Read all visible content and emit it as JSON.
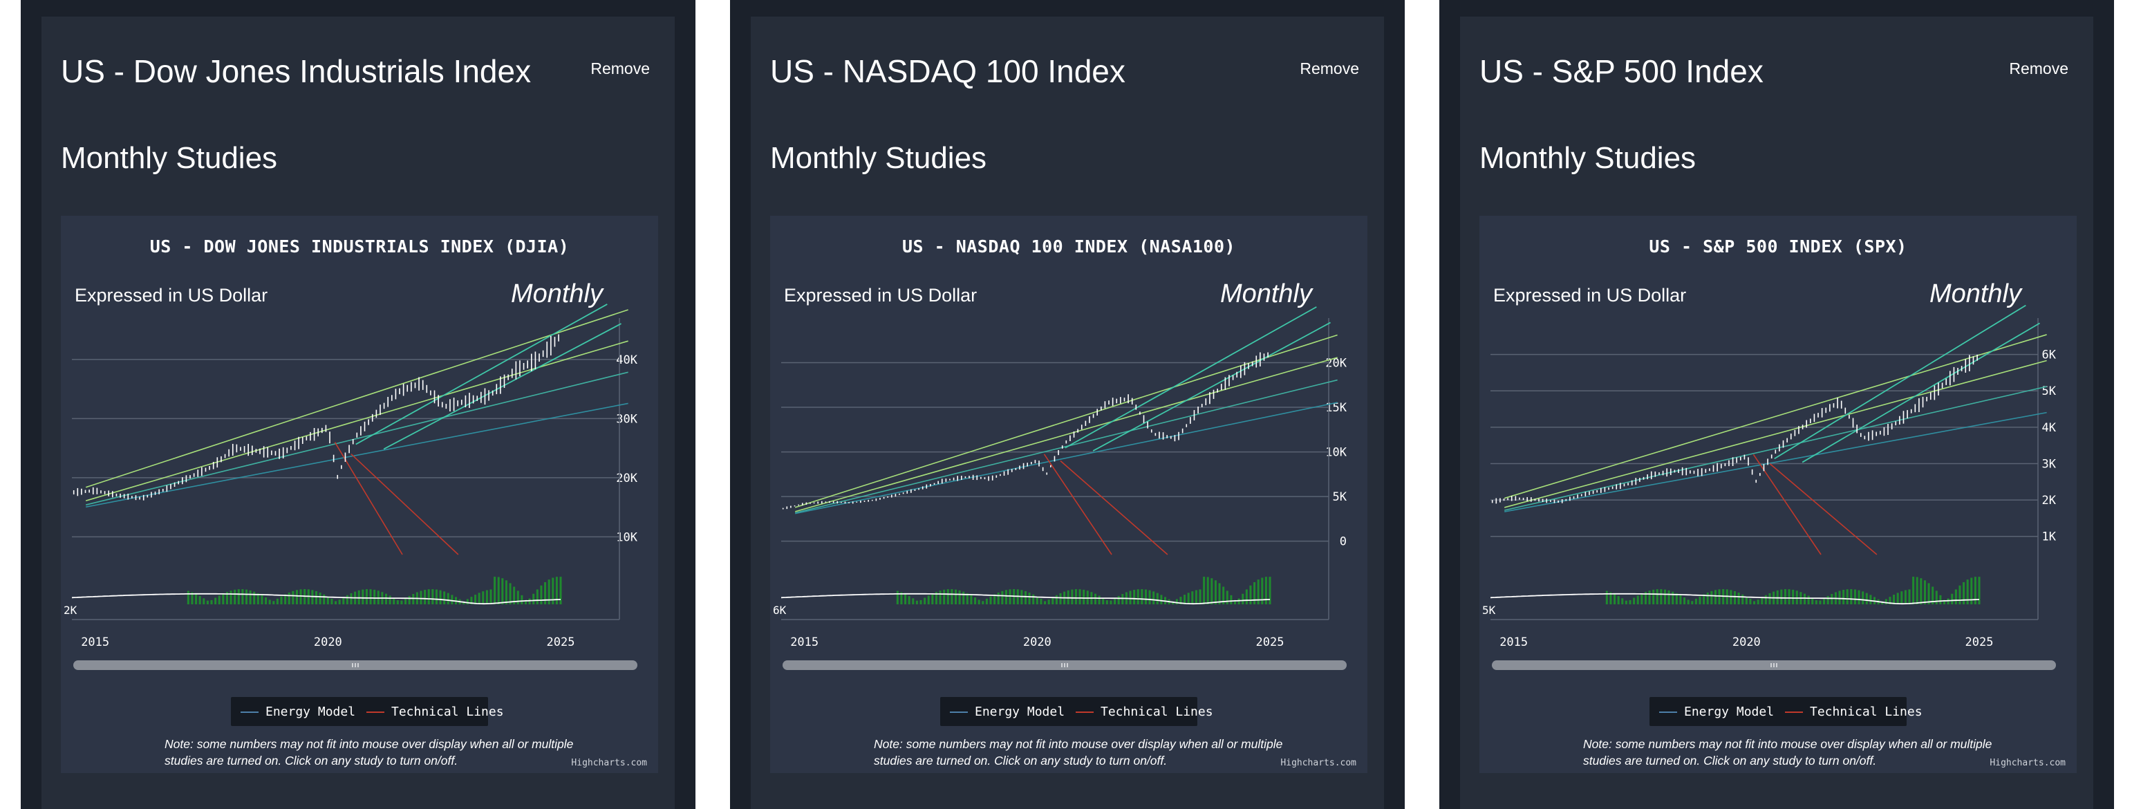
{
  "panels": [
    {
      "card_title": "US - Dow Jones Industrials Index",
      "remove_label": "Remove",
      "section_title": "Monthly Studies",
      "chart_title": "US - DOW JONES INDUSTRIALS INDEX (DJIA)",
      "subtitle": "Expressed in US Dollar",
      "period": "Monthly",
      "y_ticks": [
        "10K",
        "20K",
        "30K",
        "40K"
      ],
      "osc_label": "2K",
      "x_ticks": [
        "2015",
        "2020",
        "2025"
      ]
    },
    {
      "card_title": "US - NASDAQ 100 Index",
      "remove_label": "Remove",
      "section_title": "Monthly Studies",
      "chart_title": "US - NASDAQ 100 INDEX (NASA100)",
      "subtitle": "Expressed in US Dollar",
      "period": "Monthly",
      "y_ticks": [
        "0",
        "5K",
        "10K",
        "15K",
        "20K"
      ],
      "osc_label": "6K",
      "x_ticks": [
        "2015",
        "2020",
        "2025"
      ]
    },
    {
      "card_title": "US - S&P 500 Index",
      "remove_label": "Remove",
      "section_title": "Monthly Studies",
      "chart_title": "US - S&P 500 INDEX (SPX)",
      "subtitle": "Expressed in US Dollar",
      "period": "Monthly",
      "y_ticks": [
        "1K",
        "2K",
        "3K",
        "4K",
        "5K",
        "6K"
      ],
      "osc_label": "5K",
      "x_ticks": [
        "2015",
        "2020",
        "2025"
      ]
    }
  ],
  "legend": {
    "energy_label": "Energy Model",
    "technical_label": "Technical Lines"
  },
  "note": "Note: some numbers may not fit into mouse over display when all or multiple studies are turned on. Click on any study to turn on/off.",
  "credits": "Highcharts.com",
  "colors": {
    "page_bg": "#1b212b",
    "card_bg": "#262d39",
    "chart_bg": "#2d3546",
    "energy_line": "#4d7fa8",
    "technical_line": "#c0392b",
    "trend_green": "#a8e07a",
    "trend_teal": "#3fc7a8",
    "oscillator_bars": "#1f8a2e"
  },
  "chart_data": [
    {
      "type": "line",
      "title": "US - DOW JONES INDUSTRIALS INDEX (DJIA)",
      "subtitle": "Expressed in US Dollar",
      "x_range": [
        2014.5,
        2026.5
      ],
      "y_range": [
        7000,
        47000
      ],
      "x_ticks": [
        2015,
        2020,
        2025
      ],
      "y_ticks": [
        10000,
        20000,
        30000,
        40000
      ],
      "series": [
        {
          "name": "",
          "x": [
            2014.5,
            2015,
            2015.5,
            2016,
            2016.5,
            2017,
            2017.5,
            2018,
            2018.5,
            2019,
            2019.5,
            2020,
            2020.2,
            2020.4,
            2020.6,
            2021,
            2021.5,
            2022,
            2022.5,
            2023,
            2023.5,
            2024,
            2024.5,
            2025
          ],
          "y": [
            17500,
            17800,
            17000,
            16500,
            18000,
            20000,
            21800,
            25000,
            24500,
            24000,
            26500,
            28500,
            20000,
            24000,
            27000,
            30500,
            34500,
            36000,
            32000,
            33000,
            34000,
            38000,
            40000,
            44000
          ]
        }
      ],
      "legend": [
        "Energy Model",
        "Technical Lines"
      ],
      "grid": true
    },
    {
      "type": "line",
      "title": "US - NASDAQ 100 INDEX (NASA100)",
      "subtitle": "Expressed in US Dollar",
      "x_range": [
        2014.5,
        2026.5
      ],
      "y_range": [
        -1500,
        25000
      ],
      "x_ticks": [
        2015,
        2020,
        2025
      ],
      "y_ticks": [
        0,
        5000,
        10000,
        15000,
        20000
      ],
      "series": [
        {
          "name": "",
          "x": [
            2014.5,
            2015,
            2015.5,
            2016,
            2016.5,
            2017,
            2017.5,
            2018,
            2018.5,
            2019,
            2019.5,
            2020,
            2020.2,
            2020.4,
            2020.6,
            2021,
            2021.5,
            2022,
            2022.5,
            2023,
            2023.5,
            2024,
            2024.5,
            2025
          ],
          "y": [
            3600,
            4200,
            4400,
            4300,
            4600,
            5200,
            5900,
            6800,
            7200,
            7000,
            8000,
            9000,
            7500,
            9500,
            11000,
            13000,
            15500,
            16000,
            12000,
            11500,
            15000,
            17500,
            19500,
            21000
          ]
        }
      ],
      "legend": [
        "Energy Model",
        "Technical Lines"
      ],
      "grid": true
    },
    {
      "type": "line",
      "title": "US - S&P 500 INDEX (SPX)",
      "subtitle": "Expressed in US Dollar",
      "x_range": [
        2014.5,
        2026.5
      ],
      "y_range": [
        500,
        7000
      ],
      "x_ticks": [
        2015,
        2020,
        2025
      ],
      "y_ticks": [
        1000,
        2000,
        3000,
        4000,
        5000,
        6000
      ],
      "series": [
        {
          "name": "",
          "x": [
            2014.5,
            2015,
            2015.5,
            2016,
            2016.5,
            2017,
            2017.5,
            2018,
            2018.5,
            2019,
            2019.5,
            2020,
            2020.2,
            2020.4,
            2020.6,
            2021,
            2021.5,
            2022,
            2022.5,
            2023,
            2023.5,
            2024,
            2024.5,
            2025
          ],
          "y": [
            1950,
            2050,
            2000,
            1950,
            2150,
            2300,
            2450,
            2700,
            2800,
            2750,
            2950,
            3200,
            2500,
            2950,
            3300,
            3800,
            4300,
            4700,
            3700,
            3900,
            4400,
            4900,
            5500,
            5950
          ]
        }
      ],
      "legend": [
        "Energy Model",
        "Technical Lines"
      ],
      "grid": true
    }
  ]
}
